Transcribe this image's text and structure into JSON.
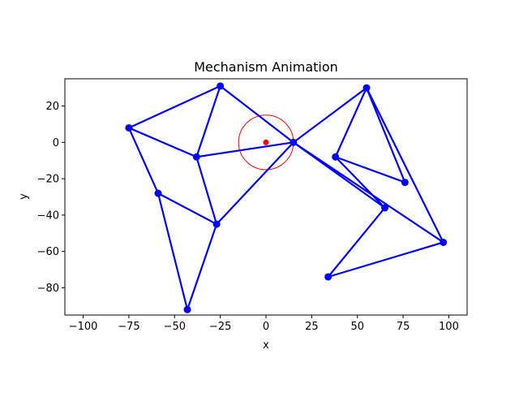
{
  "chart_data": {
    "type": "line",
    "title": "Mechanism Animation",
    "xlabel": "x",
    "ylabel": "y",
    "xlim": [
      -110,
      110
    ],
    "ylim": [
      -95,
      35
    ],
    "x_ticks": [
      -100,
      -75,
      -50,
      -25,
      0,
      25,
      50,
      75,
      100
    ],
    "x_tick_labels": [
      "−100",
      "−75",
      "−50",
      "−25",
      "0",
      "25",
      "50",
      "75",
      "100"
    ],
    "y_ticks": [
      -80,
      -60,
      -40,
      -20,
      0,
      20
    ],
    "y_tick_labels": [
      "−80",
      "−60",
      "−40",
      "−20",
      "0",
      "20"
    ],
    "grid": false,
    "colors": {
      "links": "#0000ff",
      "crank": "#ff0000",
      "axes": "#000000"
    },
    "crank": {
      "center": [
        0,
        0
      ],
      "radius": 15
    },
    "joints": {
      "A": [
        15,
        0
      ],
      "B": [
        -25,
        31
      ],
      "C": [
        -75,
        8
      ],
      "D": [
        -38,
        -8
      ],
      "E": [
        -59,
        -28
      ],
      "F": [
        -27,
        -45
      ],
      "G": [
        -43,
        -92
      ],
      "H": [
        55,
        30
      ],
      "I": [
        38,
        -8
      ],
      "J": [
        76,
        -22
      ],
      "K": [
        65,
        -36
      ],
      "L": [
        97,
        -55
      ],
      "M": [
        34,
        -74
      ]
    },
    "links": [
      [
        "A",
        "B"
      ],
      [
        "B",
        "C"
      ],
      [
        "C",
        "D"
      ],
      [
        "D",
        "A"
      ],
      [
        "B",
        "D"
      ],
      [
        "C",
        "E"
      ],
      [
        "E",
        "F"
      ],
      [
        "E",
        "G"
      ],
      [
        "G",
        "F"
      ],
      [
        "F",
        "A"
      ],
      [
        "D",
        "F"
      ],
      [
        "A",
        "H"
      ],
      [
        "H",
        "I"
      ],
      [
        "I",
        "J"
      ],
      [
        "J",
        "H"
      ],
      [
        "I",
        "K"
      ],
      [
        "K",
        "A"
      ],
      [
        "A",
        "L"
      ],
      [
        "H",
        "L"
      ],
      [
        "L",
        "M"
      ],
      [
        "M",
        "K"
      ]
    ]
  }
}
